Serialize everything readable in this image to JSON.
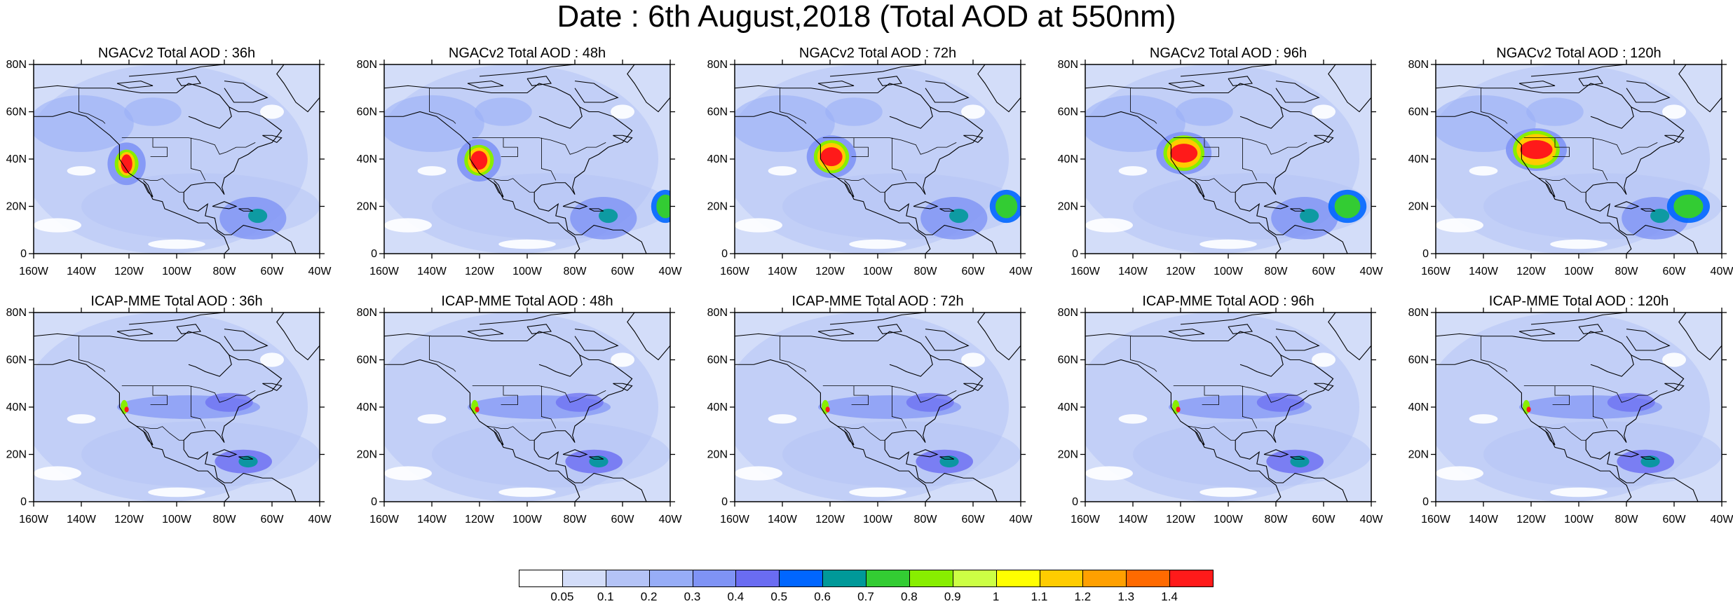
{
  "title": "Date : 6th August,2018 (Total AOD at 550nm)",
  "axes": {
    "lat_ticks": [
      "80N",
      "60N",
      "40N",
      "20N",
      "0"
    ],
    "lon_ticks": [
      "160W",
      "140W",
      "120W",
      "100W",
      "80W",
      "60W",
      "40W"
    ]
  },
  "panels": [
    {
      "title": "NGACv2 Total AOD : 36h",
      "model": "NGACv2",
      "lead": "36h"
    },
    {
      "title": "NGACv2 Total AOD : 48h",
      "model": "NGACv2",
      "lead": "48h"
    },
    {
      "title": "NGACv2 Total AOD : 72h",
      "model": "NGACv2",
      "lead": "72h"
    },
    {
      "title": "NGACv2 Total AOD : 96h",
      "model": "NGACv2",
      "lead": "96h"
    },
    {
      "title": "NGACv2 Total AOD : 120h",
      "model": "NGACv2",
      "lead": "120h"
    },
    {
      "title": "ICAP-MME Total AOD : 36h",
      "model": "ICAP-MME",
      "lead": "36h"
    },
    {
      "title": "ICAP-MME Total AOD : 48h",
      "model": "ICAP-MME",
      "lead": "48h"
    },
    {
      "title": "ICAP-MME Total AOD : 72h",
      "model": "ICAP-MME",
      "lead": "72h"
    },
    {
      "title": "ICAP-MME Total AOD : 96h",
      "model": "ICAP-MME",
      "lead": "96h"
    },
    {
      "title": "ICAP-MME Total AOD : 120h",
      "model": "ICAP-MME",
      "lead": "120h"
    }
  ],
  "colorbar": {
    "labels": [
      "0.05",
      "0.1",
      "0.2",
      "0.3",
      "0.4",
      "0.5",
      "0.6",
      "0.7",
      "0.8",
      "0.9",
      "1",
      "1.1",
      "1.2",
      "1.3",
      "1.4"
    ],
    "colors": [
      "#ffffff",
      "#d3ddf9",
      "#b4c3f6",
      "#97adf7",
      "#7f93f5",
      "#6a6cf2",
      "#0066ff",
      "#009999",
      "#33cc33",
      "#88ee00",
      "#ccff44",
      "#ffff00",
      "#ffcc00",
      "#ffa000",
      "#ff6a00",
      "#ff1a1a"
    ]
  }
}
